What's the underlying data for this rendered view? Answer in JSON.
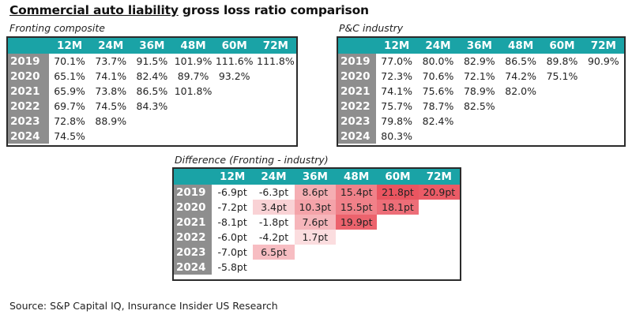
{
  "title": {
    "underlined": "Commercial auto liability",
    "rest": " gross loss ratio comparison"
  },
  "source": "Source: S&P Capital IQ, Insurance Insider US Research",
  "colors": {
    "header_teal": "#1aa3a6",
    "year_gray": "#8e8e8e",
    "heat_positive": "#e8434f"
  },
  "columns": [
    "12M",
    "24M",
    "36M",
    "48M",
    "60M",
    "72M"
  ],
  "years": [
    "2019",
    "2020",
    "2021",
    "2022",
    "2023",
    "2024"
  ],
  "tables": {
    "fronting": {
      "caption": "Fronting composite",
      "rows": [
        [
          "70.1%",
          "73.7%",
          "91.5%",
          "101.9%",
          "111.6%",
          "111.8%"
        ],
        [
          "65.1%",
          "74.1%",
          "82.4%",
          "89.7%",
          "93.2%",
          ""
        ],
        [
          "65.9%",
          "73.8%",
          "86.5%",
          "101.8%",
          "",
          ""
        ],
        [
          "69.7%",
          "74.5%",
          "84.3%",
          "",
          "",
          ""
        ],
        [
          "72.8%",
          "88.9%",
          "",
          "",
          "",
          ""
        ],
        [
          "74.5%",
          "",
          "",
          "",
          "",
          ""
        ]
      ]
    },
    "industry": {
      "caption": "P&C industry",
      "rows": [
        [
          "77.0%",
          "80.0%",
          "82.9%",
          "86.5%",
          "89.8%",
          "90.9%"
        ],
        [
          "72.3%",
          "70.6%",
          "72.1%",
          "74.2%",
          "75.1%",
          ""
        ],
        [
          "74.1%",
          "75.6%",
          "78.9%",
          "82.0%",
          "",
          ""
        ],
        [
          "75.7%",
          "78.7%",
          "82.5%",
          "",
          "",
          ""
        ],
        [
          "79.8%",
          "82.4%",
          "",
          "",
          "",
          ""
        ],
        [
          "80.3%",
          "",
          "",
          "",
          "",
          ""
        ]
      ]
    },
    "difference": {
      "caption": "Difference (Fronting - industry)",
      "unit": "pt",
      "rows": [
        [
          "-6.9pt",
          "-6.3pt",
          "8.6pt",
          "15.4pt",
          "21.8pt",
          "20.9pt"
        ],
        [
          "-7.2pt",
          "3.4pt",
          "10.3pt",
          "15.5pt",
          "18.1pt",
          ""
        ],
        [
          "-8.1pt",
          "-1.8pt",
          "7.6pt",
          "19.9pt",
          "",
          ""
        ],
        [
          "-6.0pt",
          "-4.2pt",
          "1.7pt",
          "",
          "",
          ""
        ],
        [
          "-7.0pt",
          "6.5pt",
          "",
          "",
          "",
          ""
        ],
        [
          "-5.8pt",
          "",
          "",
          "",
          "",
          ""
        ]
      ],
      "values": [
        [
          -6.9,
          -6.3,
          8.6,
          15.4,
          21.8,
          20.9
        ],
        [
          -7.2,
          3.4,
          10.3,
          15.5,
          18.1,
          null
        ],
        [
          -8.1,
          -1.8,
          7.6,
          19.9,
          null,
          null
        ],
        [
          -6.0,
          -4.2,
          1.7,
          null,
          null,
          null
        ],
        [
          -7.0,
          6.5,
          null,
          null,
          null,
          null
        ],
        [
          -5.8,
          null,
          null,
          null,
          null,
          null
        ]
      ],
      "heat_max": 21.8
    }
  }
}
